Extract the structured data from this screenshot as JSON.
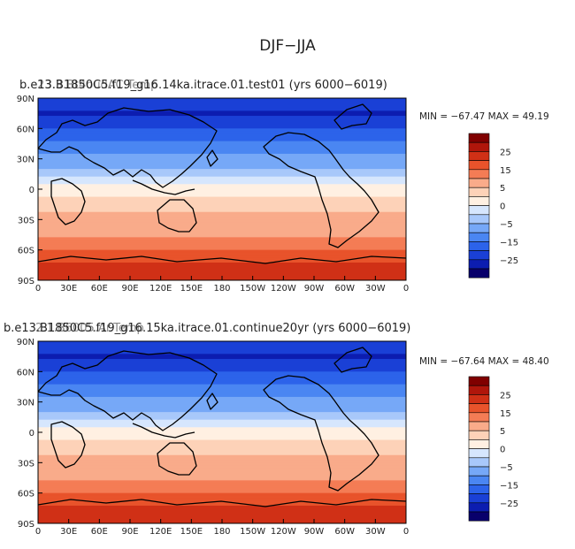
{
  "figure": {
    "title": "DJF−JJA"
  },
  "chart_data": [
    {
      "type": "heatmap",
      "title": "b.e13.B1850C5.f19_g16.14ka.itrace.01.test01  (yrs 6000−6019)",
      "overlap_title": "23.3.Bt4oudAC.Temp",
      "stats": "MIN = −67.47  MAX =  49.19",
      "x_ticks": [
        "0",
        "30E",
        "60E",
        "90E",
        "120E",
        "150E",
        "180",
        "150W",
        "120W",
        "90W",
        "60W",
        "30W",
        "0"
      ],
      "y_ticks": [
        "90N",
        "60N",
        "30N",
        "0",
        "30S",
        "60S",
        "90S"
      ],
      "colorbar_labels": [
        "25",
        "15",
        "5",
        "0",
        "−5",
        "−15",
        "−25"
      ],
      "zonal_profile": {
        "lat": [
          90,
          75,
          60,
          45,
          30,
          15,
          0,
          -15,
          -30,
          -45,
          -60,
          -75,
          -90
        ],
        "value": [
          -22,
          -26,
          -20,
          -14,
          -8,
          -3,
          1,
          4,
          6,
          9,
          15,
          21,
          24
        ]
      }
    },
    {
      "type": "heatmap",
      "title": "b.e13.B1850C5.f19_g16.15ka.itrace.01.continue20yr  (yrs 6000−6019)",
      "overlap_title": "2.1.B6005.Ar.Temp",
      "stats": "MIN = −67.64  MAX =  48.40",
      "x_ticks": [
        "0",
        "30E",
        "60E",
        "90E",
        "120E",
        "150E",
        "180",
        "150W",
        "120W",
        "90W",
        "60W",
        "30W",
        "0"
      ],
      "y_ticks": [
        "90N",
        "60N",
        "30N",
        "0",
        "30S",
        "60S",
        "90S"
      ],
      "colorbar_labels": [
        "25",
        "15",
        "5",
        "0",
        "−5",
        "−15",
        "−25"
      ],
      "zonal_profile": {
        "lat": [
          90,
          75,
          60,
          45,
          30,
          15,
          0,
          -15,
          -30,
          -45,
          -60,
          -75,
          -90
        ],
        "value": [
          -22,
          -26,
          -20,
          -14,
          -8,
          -3,
          1,
          4,
          6,
          9,
          15,
          21,
          24
        ]
      }
    }
  ],
  "colormap": [
    "#08006b",
    "#0c1db0",
    "#1a40d6",
    "#2c63ea",
    "#4a86f2",
    "#76a8f7",
    "#a8c8fa",
    "#d6e6fd",
    "#fff0e2",
    "#fdd2b8",
    "#f9ab8a",
    "#f47c55",
    "#e8532b",
    "#d03016",
    "#b0160b",
    "#800000"
  ],
  "land_color": "#000000"
}
